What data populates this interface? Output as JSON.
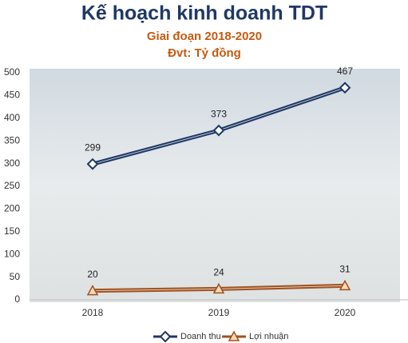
{
  "chart_data": {
    "type": "line",
    "title": "Kế hoạch kinh doanh TDT",
    "subtitle": [
      "Giai đoạn 2018-2020",
      "Đvt: Tỷ đồng"
    ],
    "categories": [
      "2018",
      "2019",
      "2020"
    ],
    "series": [
      {
        "name": "Doanh thu",
        "color": "#1f3864",
        "marker": "diamond",
        "values": [
          299,
          373,
          467
        ]
      },
      {
        "name": "Lợi nhuận",
        "color": "#a0521e",
        "marker": "triangle",
        "values": [
          20,
          24,
          31
        ]
      }
    ],
    "ylim": [
      0,
      500
    ],
    "yticks": [
      0,
      50,
      100,
      150,
      200,
      250,
      300,
      350,
      400,
      450,
      500
    ],
    "grid": false,
    "legend": "bottom"
  }
}
